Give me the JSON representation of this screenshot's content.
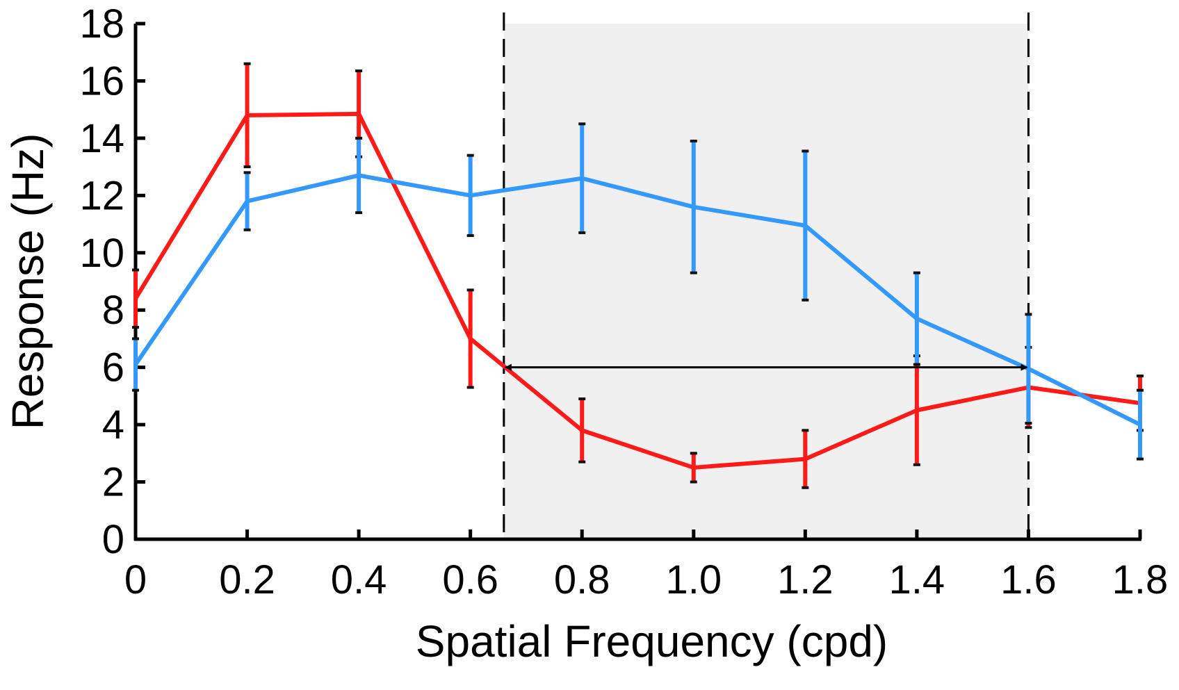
{
  "chart_data": {
    "type": "line",
    "xlabel": "Spatial Frequency (cpd)",
    "ylabel": "Response (Hz)",
    "xlim": [
      0,
      1.8
    ],
    "ylim": [
      0,
      18
    ],
    "x_ticks": [
      "0",
      "0.2",
      "0.4",
      "0.6",
      "0.8",
      "1.0",
      "1.2",
      "1.4",
      "1.6",
      "1.8"
    ],
    "x_tick_values": [
      0,
      0.2,
      0.4,
      0.6,
      0.8,
      1.0,
      1.2,
      1.4,
      1.6,
      1.8
    ],
    "y_ticks": [
      "0",
      "2",
      "4",
      "6",
      "8",
      "10",
      "12",
      "14",
      "16",
      "18"
    ],
    "y_tick_values": [
      0,
      2,
      4,
      6,
      8,
      10,
      12,
      14,
      16,
      18
    ],
    "grid": false,
    "legend": "none",
    "shaded_region": {
      "x": [
        0.66,
        1.6
      ],
      "color": "#f0f0f0"
    },
    "dashed_lines_x": [
      0.66,
      1.6
    ],
    "arrow": {
      "y": 6.0,
      "x": [
        0.66,
        1.6
      ],
      "direction": "both"
    },
    "series": [
      {
        "color": "#ff1a1a",
        "x": [
          0,
          0.2,
          0.4,
          0.6,
          0.8,
          1.0,
          1.2,
          1.4,
          1.6,
          1.8
        ],
        "y": [
          8.4,
          14.8,
          14.85,
          7.0,
          3.8,
          2.5,
          2.8,
          4.5,
          5.3,
          4.75
        ],
        "err": [
          1.0,
          1.8,
          1.5,
          1.7,
          1.1,
          0.5,
          1.0,
          1.9,
          1.4,
          0.95
        ]
      },
      {
        "color": "#3399ff",
        "x": [
          0,
          0.2,
          0.4,
          0.6,
          0.8,
          1.0,
          1.2,
          1.4,
          1.6,
          1.8
        ],
        "y": [
          6.1,
          11.8,
          12.7,
          12.0,
          12.6,
          11.6,
          10.95,
          7.7,
          5.95,
          4.0
        ],
        "err": [
          0.9,
          1.0,
          1.3,
          1.4,
          1.9,
          2.3,
          2.6,
          1.6,
          1.9,
          1.2
        ]
      }
    ]
  }
}
